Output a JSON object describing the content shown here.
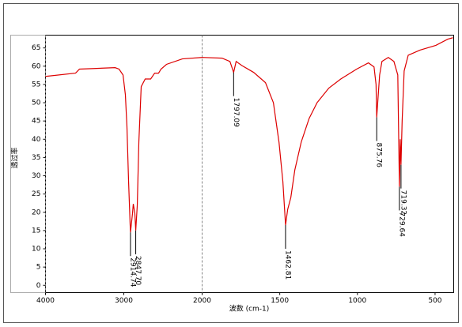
{
  "chart_data": {
    "type": "line",
    "xlabel": "波数 (cm-1)",
    "ylabel": "透过率",
    "color": "#dd0000",
    "x": [
      4000,
      3616,
      3566,
      3111,
      3061,
      3010,
      2980,
      2960,
      2939,
      2919,
      2914.74,
      2889,
      2879,
      2859,
      2847.7,
      2828,
      2808,
      2778,
      2727,
      2657,
      2606,
      2556,
      2525,
      2455,
      2253,
      2000,
      1872,
      1821,
      1797.09,
      1781,
      1745,
      1668,
      1592,
      1541,
      1505,
      1480,
      1462.81,
      1449,
      1429,
      1403,
      1362,
      1311,
      1260,
      1184,
      1107,
      1005,
      929,
      893,
      880,
      875.76,
      857,
      842,
      801,
      765,
      740,
      729.64,
      724,
      719.32,
      712,
      699,
      673,
      597,
      495,
      418,
      385
    ],
    "values": [
      57.2,
      58.1,
      59.2,
      59.6,
      59.2,
      57.6,
      52.2,
      43.5,
      28.4,
      16.5,
      14.5,
      19.7,
      22.3,
      19.7,
      15,
      21.9,
      39.2,
      54.4,
      56.5,
      56.5,
      58.1,
      58.1,
      59.2,
      60.5,
      62,
      62.4,
      62.2,
      61.3,
      58.3,
      61.3,
      60.2,
      58.3,
      55.5,
      50,
      39.2,
      28.4,
      16.5,
      20.8,
      24,
      31.6,
      39.2,
      45.7,
      50,
      54,
      56.5,
      59.2,
      60.9,
      59.8,
      55,
      46,
      57.6,
      61.3,
      62.4,
      61.3,
      57.6,
      27,
      40,
      33,
      45,
      58.7,
      63,
      64.4,
      65.7,
      67.4,
      67.8
    ],
    "xlim": [
      4000,
      380
    ],
    "x_scale_break": 2000,
    "xticks": [
      4000,
      3000,
      2000,
      1500,
      1000,
      500
    ],
    "ylim": [
      -2,
      68.5
    ],
    "yticks": [
      0,
      5,
      10,
      15,
      20,
      25,
      30,
      35,
      40,
      45,
      50,
      55,
      60,
      65
    ],
    "vlines": [
      4000,
      2000
    ],
    "annotations": [
      {
        "x": 2914.74,
        "y": 14.5,
        "label": "2914.74"
      },
      {
        "x": 2847.7,
        "y": 15,
        "label": "2847.70"
      },
      {
        "x": 1797.09,
        "y": 58.3,
        "label": "1797.09"
      },
      {
        "x": 1462.81,
        "y": 16.5,
        "label": "1462.81"
      },
      {
        "x": 875.76,
        "y": 46,
        "label": "875.76"
      },
      {
        "x": 729.64,
        "y": 27,
        "label": "729.64"
      },
      {
        "x": 719.32,
        "y": 33,
        "label": "719.32"
      }
    ]
  }
}
